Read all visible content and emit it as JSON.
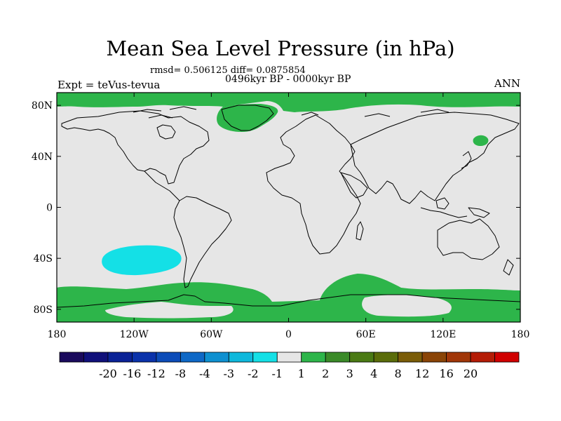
{
  "title": "Mean Sea Level Pressure (in hPa)",
  "stats_line": "rmsd= 0.506125 diff= 0.0875854",
  "period_line": "0496kyr BP - 0000kyr BP",
  "experiment_label": "Expt = teVus-tevua",
  "season_label": "ANN",
  "map": {
    "projection": "cylindrical equidistant",
    "lon_range": [
      -180,
      180
    ],
    "lat_range": [
      -90,
      90
    ],
    "background_color": "#e6e6e6",
    "coastline_color": "#000000",
    "x_ticks": [
      {
        "lon": -180,
        "label": "180"
      },
      {
        "lon": -120,
        "label": "120W"
      },
      {
        "lon": -60,
        "label": "60W"
      },
      {
        "lon": 0,
        "label": "0"
      },
      {
        "lon": 60,
        "label": "60E"
      },
      {
        "lon": 120,
        "label": "120E"
      },
      {
        "lon": 180,
        "label": "180"
      }
    ],
    "y_ticks": [
      {
        "lat": 80,
        "label": "80N"
      },
      {
        "lat": 40,
        "label": "40N"
      },
      {
        "lat": 0,
        "label": "0"
      },
      {
        "lat": -40,
        "label": "40S"
      },
      {
        "lat": -80,
        "label": "80S"
      }
    ],
    "anomaly_regions": [
      {
        "name": "arctic-positive-anomaly",
        "range": "1 to 2",
        "color": "#2db54a"
      },
      {
        "name": "greenland-positive-anomaly",
        "range": "1 to 2",
        "color": "#2db54a"
      },
      {
        "name": "north-pacific-positive-anomaly",
        "range": "1 to 2",
        "color": "#2db54a"
      },
      {
        "name": "south-pacific-negative-anomaly",
        "range": "-2 to -1",
        "color": "#14e0e6"
      },
      {
        "name": "southern-ocean-positive-anomaly",
        "range": "1 to 2",
        "color": "#2db54a"
      }
    ]
  },
  "colorbar": {
    "colors": [
      "#1a0a5c",
      "#10107a",
      "#0a2296",
      "#0a32aa",
      "#0c4cb8",
      "#0e68c6",
      "#0e90d0",
      "#0eb8dc",
      "#14e0e6",
      "#e6e6e6",
      "#2db54a",
      "#3a8a28",
      "#4a7a14",
      "#5a6c0a",
      "#7a5c08",
      "#8a4406",
      "#a03608",
      "#b41c06",
      "#d00000"
    ],
    "labels": [
      "-20",
      "-16",
      "-12",
      "-8",
      "-4",
      "-3",
      "-2",
      "-1",
      "1",
      "2",
      "3",
      "4",
      "8",
      "12",
      "16",
      "20"
    ]
  }
}
